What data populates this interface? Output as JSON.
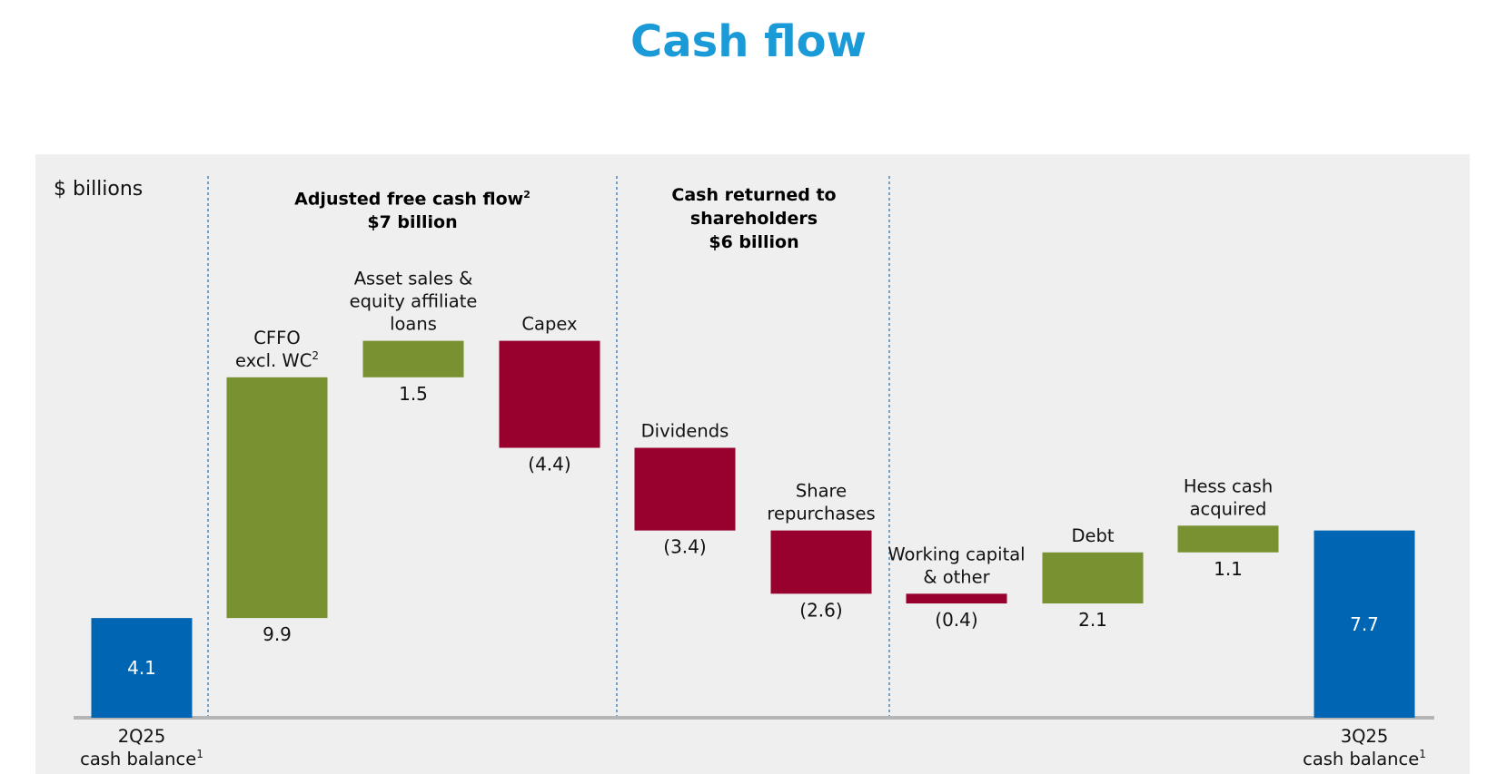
{
  "title": "Cash flow",
  "unit_label": "$ billions",
  "sections": [
    {
      "line1": "Adjusted free cash flow",
      "sup": "2",
      "line2": "$7 billion"
    },
    {
      "line1": "Cash returned to shareholders",
      "sup": "",
      "line2": "$6 billion"
    }
  ],
  "colors": {
    "title": "#1a9bd7",
    "balance": "#0066b3",
    "increase": "#789232",
    "decrease": "#98002e",
    "panel": "#efefef",
    "axis": "#b5b5b5",
    "divider": "#1f6fb5"
  },
  "chart_data": {
    "type": "bar",
    "subtype": "waterfall",
    "unit": "$ billions",
    "steps": [
      {
        "label_lines": [
          "2Q25",
          "cash balance"
        ],
        "label_sup": "1",
        "value": 4.1,
        "value_label": "4.1",
        "kind": "balance"
      },
      {
        "label_lines": [
          "CFFO",
          "excl. WC"
        ],
        "label_sup": "2",
        "value": 9.9,
        "value_label": "9.9",
        "kind": "increase"
      },
      {
        "label_lines": [
          "Asset sales &",
          "equity affiliate",
          "loans"
        ],
        "label_sup": "",
        "value": 1.5,
        "value_label": "1.5",
        "kind": "increase"
      },
      {
        "label_lines": [
          "Capex"
        ],
        "label_sup": "",
        "value": -4.4,
        "value_label": "(4.4)",
        "kind": "decrease"
      },
      {
        "label_lines": [
          "Dividends"
        ],
        "label_sup": "",
        "value": -3.4,
        "value_label": "(3.4)",
        "kind": "decrease"
      },
      {
        "label_lines": [
          "Share",
          "repurchases"
        ],
        "label_sup": "",
        "value": -2.6,
        "value_label": "(2.6)",
        "kind": "decrease"
      },
      {
        "label_lines": [
          "Working capital",
          "& other"
        ],
        "label_sup": "",
        "value": -0.4,
        "value_label": "(0.4)",
        "kind": "decrease"
      },
      {
        "label_lines": [
          "Debt"
        ],
        "label_sup": "",
        "value": 2.1,
        "value_label": "2.1",
        "kind": "increase"
      },
      {
        "label_lines": [
          "Hess cash",
          "acquired"
        ],
        "label_sup": "",
        "value": 1.1,
        "value_label": "1.1",
        "kind": "increase"
      },
      {
        "label_lines": [
          "3Q25",
          "cash balance"
        ],
        "label_sup": "1",
        "value": 7.7,
        "value_label": "7.7",
        "kind": "balance"
      }
    ],
    "ylim": [
      0,
      14.9
    ]
  }
}
